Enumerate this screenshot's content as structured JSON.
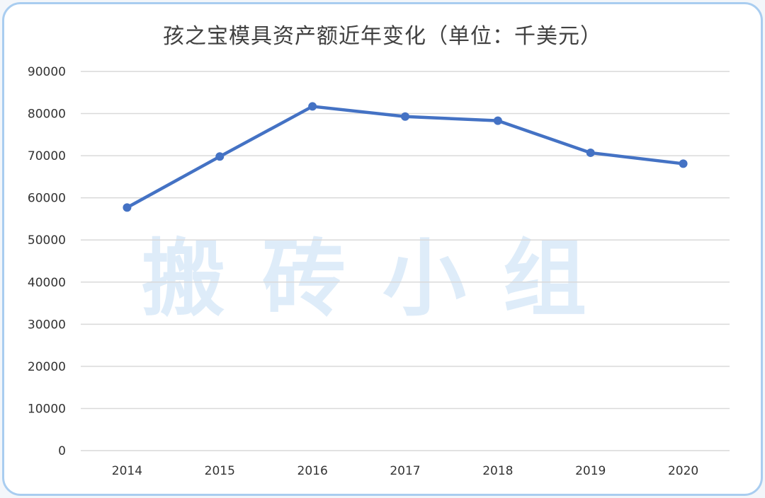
{
  "chart_data": {
    "type": "line",
    "title": "孩之宝模具资产额近年变化（单位：千美元）",
    "categories": [
      "2014",
      "2015",
      "2016",
      "2017",
      "2018",
      "2019",
      "2020"
    ],
    "series": [
      {
        "values": [
          57700,
          69800,
          81700,
          79300,
          78300,
          70700,
          68100
        ]
      }
    ],
    "y_ticks": [
      "0",
      "10000",
      "20000",
      "30000",
      "40000",
      "50000",
      "60000",
      "70000",
      "80000",
      "90000"
    ],
    "ylim": [
      0,
      90000
    ],
    "grid": true,
    "legend": "none",
    "line_color": "#4472c4",
    "grid_color": "#d9d9d9"
  },
  "watermark": "搬砖小组"
}
